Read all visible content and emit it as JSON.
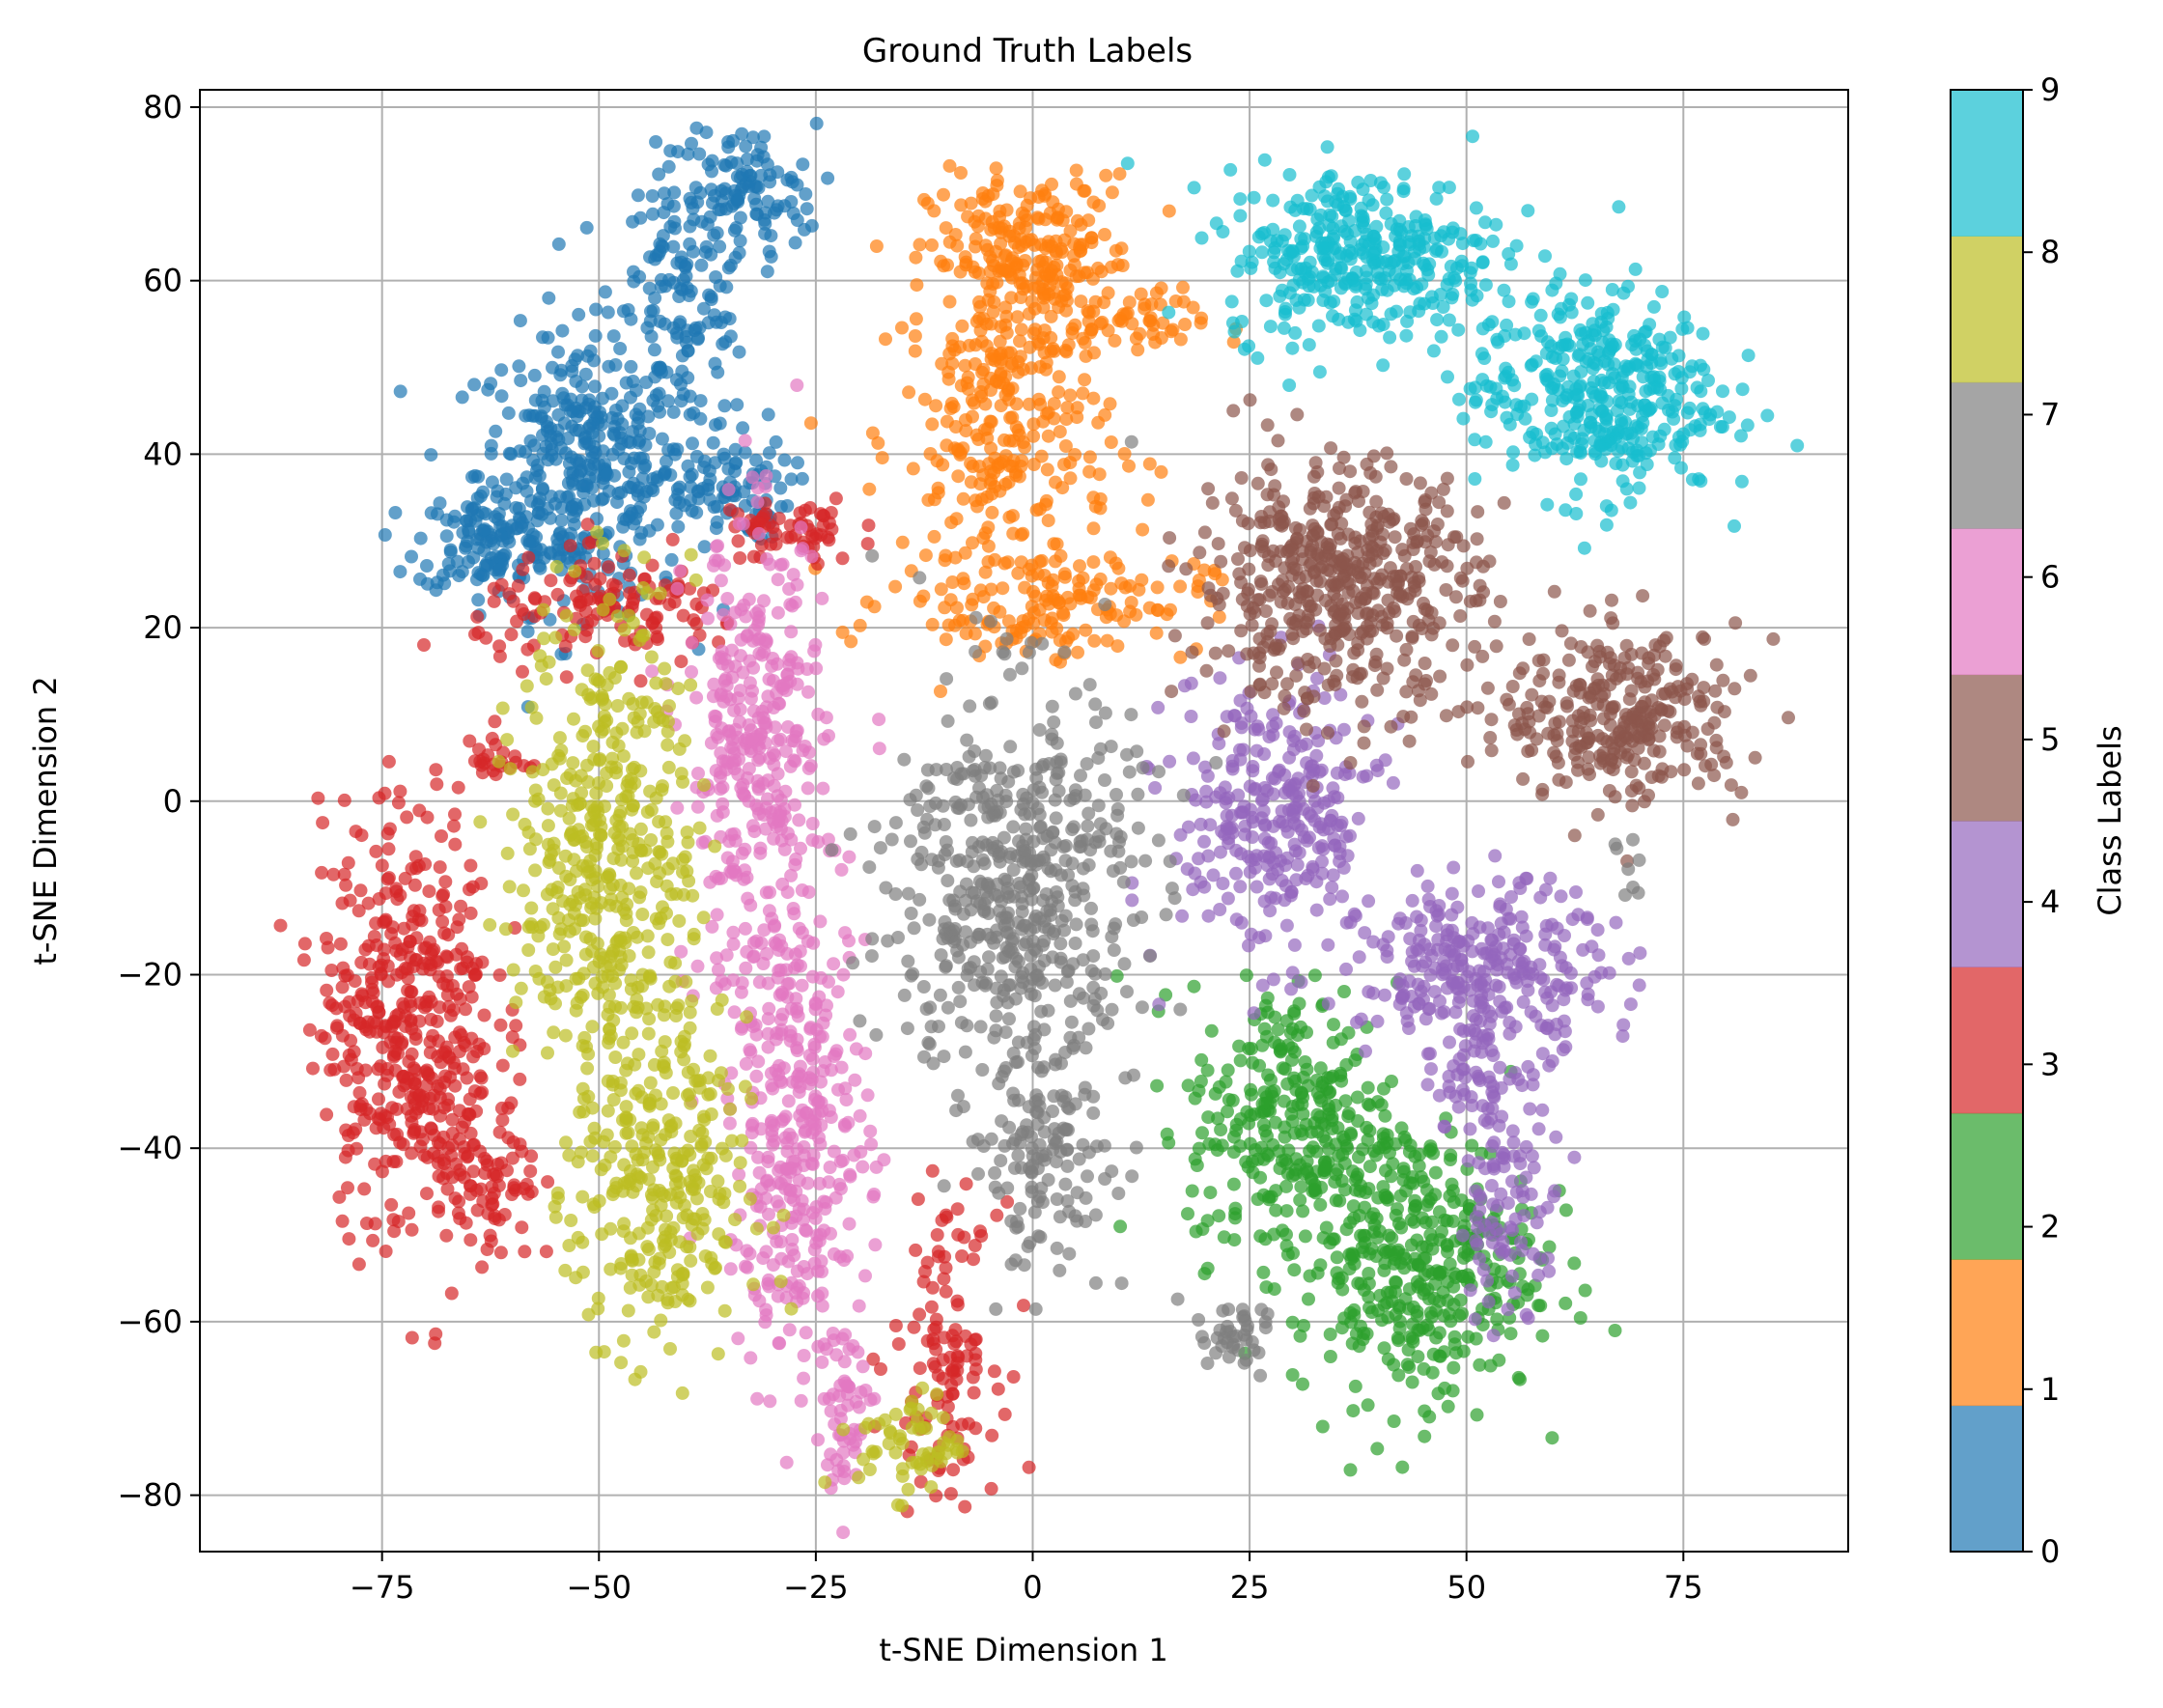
{
  "chart_data": {
    "type": "scatter",
    "title": "Ground Truth Labels",
    "xlabel": "t-SNE Dimension 1",
    "ylabel": "t-SNE Dimension 2",
    "xlim": [
      -96,
      94
    ],
    "ylim": [
      -86.5,
      82
    ],
    "xticks": [
      -75,
      -50,
      -25,
      0,
      25,
      50,
      75
    ],
    "yticks": [
      -80,
      -60,
      -40,
      -20,
      0,
      20,
      40,
      60,
      80
    ],
    "grid": true,
    "colorbar": {
      "label": "Class Labels",
      "range": [
        0,
        9
      ],
      "ticks": [
        0,
        1,
        2,
        3,
        4,
        5,
        6,
        7,
        8,
        9
      ],
      "colors": [
        "#1f77b4",
        "#ff7f0e",
        "#2ca02c",
        "#d62728",
        "#9467bd",
        "#8c564b",
        "#e377c2",
        "#7f7f7f",
        "#bcbd22",
        "#17becf"
      ]
    },
    "series": [
      {
        "class": 0,
        "color": "#1f77b4",
        "clusters": [
          {
            "x": -52,
            "y": 38,
            "sx": 6,
            "sy": 8,
            "n": 380
          },
          {
            "x": -40,
            "y": 58,
            "sx": 4,
            "sy": 8,
            "n": 160
          },
          {
            "x": -33,
            "y": 70,
            "sx": 4,
            "sy": 4,
            "n": 90
          },
          {
            "x": -63,
            "y": 30,
            "sx": 4,
            "sy": 3,
            "n": 110
          },
          {
            "x": -36,
            "y": 36,
            "sx": 4,
            "sy": 3,
            "n": 90
          }
        ]
      },
      {
        "class": 1,
        "color": "#ff7f0e",
        "clusters": [
          {
            "x": 0,
            "y": 62,
            "sx": 6,
            "sy": 5,
            "n": 240
          },
          {
            "x": -3,
            "y": 42,
            "sx": 6,
            "sy": 10,
            "n": 280
          },
          {
            "x": 2,
            "y": 23,
            "sx": 9,
            "sy": 3,
            "n": 150
          },
          {
            "x": 12,
            "y": 55,
            "sx": 4,
            "sy": 2,
            "n": 40
          }
        ]
      },
      {
        "class": 2,
        "color": "#2ca02c",
        "clusters": [
          {
            "x": 30,
            "y": -37,
            "sx": 6,
            "sy": 8,
            "n": 300
          },
          {
            "x": 44,
            "y": -53,
            "sx": 7,
            "sy": 8,
            "n": 400
          }
        ]
      },
      {
        "class": 3,
        "color": "#d62728",
        "clusters": [
          {
            "x": -72,
            "y": -25,
            "sx": 5,
            "sy": 12,
            "n": 450
          },
          {
            "x": -63,
            "y": -45,
            "sx": 3,
            "sy": 5,
            "n": 80
          },
          {
            "x": -48,
            "y": 22,
            "sx": 8,
            "sy": 3,
            "n": 130
          },
          {
            "x": -28,
            "y": 31,
            "sx": 4,
            "sy": 2,
            "n": 60
          },
          {
            "x": -10,
            "y": -63,
            "sx": 3,
            "sy": 8,
            "n": 120
          },
          {
            "x": -62,
            "y": 5,
            "sx": 2,
            "sy": 2,
            "n": 25
          }
        ]
      },
      {
        "class": 4,
        "color": "#9467bd",
        "clusters": [
          {
            "x": 28,
            "y": -2,
            "sx": 6,
            "sy": 8,
            "n": 300
          },
          {
            "x": 52,
            "y": -20,
            "sx": 7,
            "sy": 5,
            "n": 300
          },
          {
            "x": 55,
            "y": -48,
            "sx": 3,
            "sy": 5,
            "n": 80
          },
          {
            "x": 52,
            "y": -33,
            "sx": 3,
            "sy": 3,
            "n": 50
          }
        ]
      },
      {
        "class": 5,
        "color": "#8c564b",
        "clusters": [
          {
            "x": 35,
            "y": 25,
            "sx": 8,
            "sy": 7,
            "n": 500
          },
          {
            "x": 68,
            "y": 10,
            "sx": 7,
            "sy": 5,
            "n": 300
          }
        ]
      },
      {
        "class": 6,
        "color": "#e377c2",
        "clusters": [
          {
            "x": -32,
            "y": 5,
            "sx": 4,
            "sy": 13,
            "n": 350
          },
          {
            "x": -27,
            "y": -38,
            "sx": 4,
            "sy": 13,
            "n": 350
          },
          {
            "x": -22,
            "y": -70,
            "sx": 2,
            "sy": 5,
            "n": 60
          }
        ]
      },
      {
        "class": 7,
        "color": "#7f7f7f",
        "clusters": [
          {
            "x": -2,
            "y": -10,
            "sx": 7,
            "sy": 12,
            "n": 550
          },
          {
            "x": 1,
            "y": -42,
            "sx": 4,
            "sy": 6,
            "n": 120
          },
          {
            "x": 23,
            "y": -62,
            "sx": 3,
            "sy": 2,
            "n": 40
          },
          {
            "x": 68,
            "y": -8,
            "sx": 1,
            "sy": 2,
            "n": 8
          }
        ]
      },
      {
        "class": 8,
        "color": "#bcbd22",
        "clusters": [
          {
            "x": -49,
            "y": -5,
            "sx": 5,
            "sy": 14,
            "n": 450
          },
          {
            "x": -43,
            "y": -45,
            "sx": 5,
            "sy": 10,
            "n": 300
          },
          {
            "x": -14,
            "y": -74,
            "sx": 3,
            "sy": 3,
            "n": 60
          }
        ]
      },
      {
        "class": 9,
        "color": "#17becf",
        "clusters": [
          {
            "x": 38,
            "y": 63,
            "sx": 8,
            "sy": 5,
            "n": 350
          },
          {
            "x": 65,
            "y": 47,
            "sx": 7,
            "sy": 6,
            "n": 380
          }
        ]
      }
    ]
  }
}
